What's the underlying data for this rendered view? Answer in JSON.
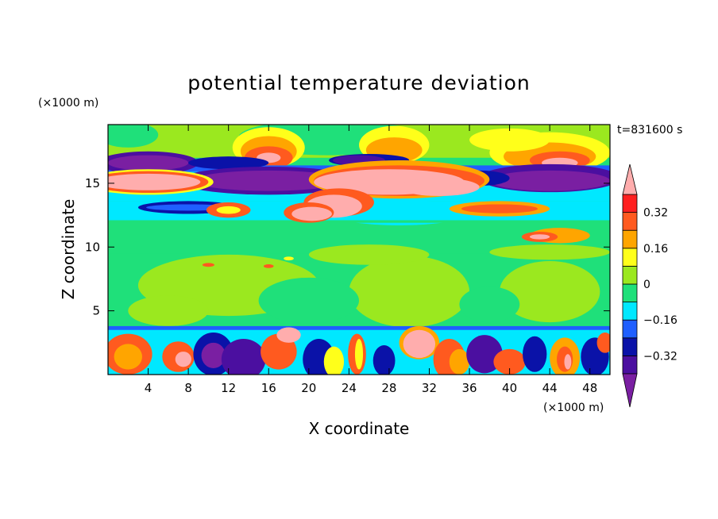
{
  "chart_data": {
    "type": "heatmap",
    "title": "potential temperature deviation",
    "xlabel": "X coordinate",
    "ylabel": "Z coordinate",
    "x_unit_label": "(×1000 m)",
    "y_unit_label": "(×1000 m)",
    "time_label": "t=831600 s",
    "xlim": [
      0,
      50
    ],
    "ylim": [
      0,
      19.6
    ],
    "x_ticks": [
      4,
      8,
      12,
      16,
      20,
      24,
      28,
      32,
      36,
      40,
      44,
      48
    ],
    "y_ticks": [
      5,
      10,
      15
    ],
    "colorbar": {
      "levels": [
        -0.4,
        -0.32,
        -0.24,
        -0.16,
        -0.08,
        0,
        0.08,
        0.16,
        0.24,
        0.32,
        0.4
      ],
      "tick_labels": [
        {
          "value": 0.32,
          "label": "0.32"
        },
        {
          "value": 0.16,
          "label": "0.16"
        },
        {
          "value": 0,
          "label": "0"
        },
        {
          "value": -0.16,
          "label": "−0.16"
        },
        {
          "value": -0.32,
          "label": "−0.32"
        }
      ],
      "colors": [
        "#7a1fa2",
        "#4b0fa0",
        "#0a12a8",
        "#1f5fff",
        "#00e8ff",
        "#1fe07a",
        "#9be81f",
        "#ffff1a",
        "#ffa500",
        "#ff5a1f",
        "#ff1f1f",
        "#ffadad"
      ],
      "extend": "both"
    },
    "field_features": [
      {
        "desc": "background layer",
        "value": 0.04
      },
      {
        "desc": "stratosphere band",
        "zrange": [
          17,
          19.6
        ],
        "value": 0.1
      },
      {
        "desc": "cold band",
        "zrange": [
          13.5,
          16.5
        ],
        "value": -0.36
      },
      {
        "desc": "warm arc",
        "xrange": [
          18,
          36
        ],
        "zrange": [
          12,
          16.6
        ],
        "value": 0.45
      },
      {
        "desc": "warm left lobe",
        "xrange": [
          0,
          9
        ],
        "zrange": [
          14.5,
          16
        ],
        "value": 0.45
      },
      {
        "desc": "cool pool",
        "xrange": [
          22,
          34
        ],
        "zrange": [
          12,
          14
        ],
        "value": -0.1
      },
      {
        "desc": "boundary layer",
        "zrange": [
          0,
          3.5
        ],
        "value": "mixed"
      },
      {
        "desc": "warm thermal",
        "xrange": [
          29.5,
          32.5
        ],
        "zrange": [
          1.5,
          3.6
        ],
        "value": 0.45
      }
    ]
  }
}
